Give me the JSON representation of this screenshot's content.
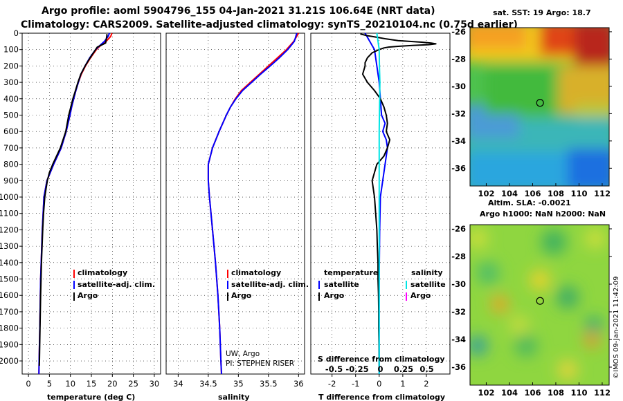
{
  "title_line1": "Argo profile: aoml 5904796_155 04-Jan-2021 31.21S 106.64E (NRT data)",
  "title_line2": "Climatology: CARS2009. Satellite-adjusted climatology: synTS_20210104.nc (0.75d earlier)",
  "sst_title": "sat. SST: 19 Argo: 18.7",
  "sla_title_1": "Altim. SLA: -0.0021",
  "sla_title_2": "Argo h1000: NaN h2000: NaN",
  "credit": "©IMOS 09-Jan-2021 11:42:09",
  "note_1": "UW, Argo",
  "note_2": "PI: STEPHEN RISER",
  "colors": {
    "climatology": "#ff0000",
    "satellite": "#0000ff",
    "argo": "#000000",
    "sal_satellite": "#00e5e5",
    "sal_argo": "#ff00ff"
  },
  "chart_data": [
    {
      "type": "line",
      "xlabel": "temperature (deg C)",
      "xlim": [
        -1.5,
        31.5
      ],
      "ylim": [
        2080,
        0
      ],
      "x_ticks": [
        "0",
        "5",
        "10",
        "15",
        "20",
        "25",
        "30"
      ],
      "y_ticks": [
        "0",
        "100",
        "200",
        "300",
        "400",
        "500",
        "600",
        "700",
        "800",
        "900",
        "1000",
        "1100",
        "1200",
        "1300",
        "1400",
        "1500",
        "1600",
        "1700",
        "1800",
        "1900",
        "2000"
      ],
      "legend": [
        "climatology",
        "satellite-adj. clim.",
        "Argo"
      ],
      "series": [
        {
          "name": "climatology",
          "depth": [
            0,
            20,
            50,
            80,
            100,
            150,
            200,
            250,
            300,
            350,
            400,
            450,
            500,
            600,
            700,
            800,
            900,
            1000,
            1200,
            1500,
            1800,
            2000,
            2080
          ],
          "values": [
            19.9,
            19.6,
            18.5,
            17.0,
            16.2,
            14.8,
            13.6,
            12.6,
            11.9,
            11.3,
            10.8,
            10.3,
            9.9,
            9.0,
            7.8,
            6.0,
            4.4,
            3.7,
            3.3,
            2.9,
            2.7,
            2.55,
            2.5
          ]
        },
        {
          "name": "satellite-adj. clim.",
          "depth": [
            0,
            20,
            50,
            80,
            100,
            150,
            200,
            250,
            300,
            350,
            400,
            450,
            500,
            600,
            700,
            800,
            900,
            1000,
            1200,
            1500,
            1800,
            2000,
            2080
          ],
          "values": [
            19.3,
            19.0,
            18.1,
            16.8,
            16.0,
            14.6,
            13.5,
            12.5,
            11.9,
            11.3,
            10.8,
            10.3,
            9.9,
            9.0,
            7.8,
            6.0,
            4.4,
            3.7,
            3.3,
            2.9,
            2.7,
            2.55,
            2.5
          ]
        },
        {
          "name": "Argo",
          "depth": [
            5,
            15,
            30,
            60,
            75,
            85,
            100,
            150,
            200,
            250,
            300,
            350,
            400,
            450,
            500,
            600,
            700,
            800,
            850,
            900,
            950,
            1000,
            1100,
            1200,
            1400,
            1600,
            1800,
            2000,
            2030
          ],
          "values": [
            18.7,
            18.7,
            18.6,
            18.4,
            17.2,
            16.4,
            16.0,
            14.7,
            13.5,
            12.5,
            11.8,
            11.2,
            10.6,
            10.1,
            9.6,
            8.9,
            7.6,
            5.8,
            5.0,
            4.5,
            4.2,
            3.9,
            3.6,
            3.4,
            3.1,
            2.9,
            2.75,
            2.62,
            2.6
          ]
        }
      ]
    },
    {
      "type": "line",
      "xlabel": "salinity",
      "xlim": [
        33.8,
        36.1
      ],
      "ylim": [
        2080,
        0
      ],
      "x_ticks": [
        "34",
        "34.5",
        "35",
        "35.5",
        "36"
      ],
      "legend": [
        "climatology",
        "satellite-adj. clim.",
        "Argo"
      ],
      "series": [
        {
          "name": "climatology",
          "depth": [
            0,
            50,
            100,
            150,
            200,
            250,
            300,
            350,
            400,
            450,
            500,
            600,
            700,
            800,
            900,
            1000,
            1200,
            1400,
            1600,
            1800,
            2000,
            2080
          ],
          "values": [
            36.0,
            35.92,
            35.8,
            35.65,
            35.5,
            35.35,
            35.2,
            35.05,
            34.95,
            34.87,
            34.8,
            34.68,
            34.57,
            34.5,
            34.5,
            34.52,
            34.57,
            34.62,
            34.66,
            34.69,
            34.71,
            34.72
          ]
        },
        {
          "name": "satellite-adj. clim.",
          "depth": [
            0,
            50,
            100,
            150,
            200,
            250,
            300,
            350,
            400,
            450,
            500,
            600,
            700,
            800,
            900,
            1000,
            1200,
            1400,
            1600,
            1800,
            2000,
            2080
          ],
          "values": [
            35.97,
            35.93,
            35.82,
            35.68,
            35.53,
            35.37,
            35.22,
            35.07,
            34.96,
            34.87,
            34.8,
            34.68,
            34.57,
            34.5,
            34.5,
            34.52,
            34.57,
            34.62,
            34.66,
            34.69,
            34.71,
            34.72
          ]
        }
      ]
    },
    {
      "type": "line",
      "xlabel": "T difference from climatology",
      "xlim": [
        -2.9,
        3.0
      ],
      "ylim": [
        2080,
        0
      ],
      "x_ticks": [
        "-2",
        "-1",
        "0",
        "1",
        "2"
      ],
      "x2label": "S difference from climatology",
      "x2_ticks": [
        "-0.5",
        "-0.25",
        "0",
        "0.25",
        "0.5"
      ],
      "legend_temperature": [
        "temperature",
        "satellite",
        "Argo"
      ],
      "legend_salinity": [
        "salinity",
        "satellite",
        "Argo"
      ],
      "series": [
        {
          "name": "temperature satellite",
          "depth": [
            0,
            50,
            100,
            200,
            300,
            400,
            500,
            550,
            600,
            650,
            700,
            750,
            800,
            900,
            1000,
            1200,
            1500,
            1800,
            2000,
            2080
          ],
          "values": [
            -0.6,
            -0.4,
            -0.2,
            -0.1,
            0.0,
            0.05,
            0.1,
            0.25,
            0.15,
            0.3,
            0.35,
            0.3,
            0.25,
            0.15,
            0.05,
            0.02,
            0.0,
            0.0,
            0.0,
            0.0
          ]
        },
        {
          "name": "temperature Argo",
          "depth": [
            5,
            15,
            25,
            35,
            45,
            50,
            55,
            60,
            65,
            70,
            75,
            80,
            85,
            90,
            100,
            120,
            150,
            180,
            200,
            250,
            300,
            350,
            400,
            450,
            500,
            550,
            600,
            650,
            700,
            750,
            800,
            850,
            900,
            950,
            1000,
            1100,
            1200,
            1300,
            1400,
            1500,
            1600,
            1700,
            1800,
            1900,
            2000,
            2030
          ],
          "values": [
            -0.8,
            -0.5,
            -0.1,
            0.3,
            0.8,
            1.3,
            1.8,
            2.2,
            2.4,
            2.1,
            1.4,
            0.8,
            0.4,
            0.2,
            0.0,
            -0.3,
            -0.5,
            -0.6,
            -0.6,
            -0.7,
            -0.5,
            -0.2,
            0.05,
            0.2,
            0.3,
            0.35,
            0.3,
            0.45,
            0.35,
            0.2,
            -0.1,
            -0.2,
            -0.3,
            -0.25,
            -0.2,
            -0.15,
            -0.1,
            -0.08,
            -0.05,
            -0.05,
            -0.03,
            -0.02,
            -0.02,
            -0.01,
            0.0,
            0.0
          ]
        },
        {
          "name": "salinity satellite",
          "depth": [
            0,
            50,
            100,
            200,
            300,
            400,
            500,
            600,
            700,
            800,
            900,
            1000,
            1200,
            1500,
            1800,
            2000,
            2080
          ],
          "values": [
            -0.1,
            -0.05,
            0.0,
            0.01,
            0.03,
            0.02,
            0.01,
            0.0,
            0.0,
            0.0,
            0.0,
            0.0,
            0.0,
            0.0,
            0.0,
            0.0,
            0.0
          ]
        }
      ]
    },
    {
      "type": "heatmap",
      "title": "sat. SST: 19 Argo: 18.7",
      "x_ticks": [
        "102",
        "104",
        "106",
        "108",
        "110",
        "112"
      ],
      "y_ticks": [
        "-26",
        "-28",
        "-30",
        "-32",
        "-34",
        "-36"
      ],
      "xlim": [
        100.6,
        112.6
      ],
      "ylim": [
        -37.3,
        -25.7
      ],
      "marker": [
        106.64,
        -31.21
      ]
    },
    {
      "type": "heatmap",
      "x_ticks": [
        "102",
        "104",
        "106",
        "108",
        "110",
        "112"
      ],
      "y_ticks": [
        "-26",
        "-28",
        "-30",
        "-32",
        "-34",
        "-36"
      ],
      "xlim": [
        100.6,
        112.6
      ],
      "ylim": [
        -37.3,
        -25.7
      ],
      "marker": [
        106.64,
        -31.21
      ]
    }
  ]
}
